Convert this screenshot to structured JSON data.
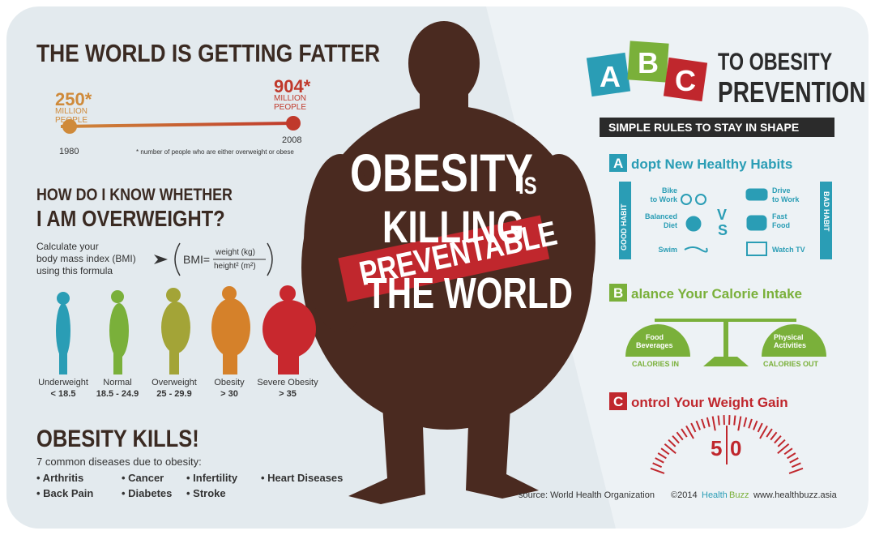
{
  "fatter": {
    "title": "THE WORLD IS GETTING FATTER",
    "points": [
      {
        "value": "250*",
        "unit": [
          "MILLION",
          "PEOPLE"
        ],
        "year": "1980"
      },
      {
        "value": "904*",
        "unit": [
          "MILLION",
          "PEOPLE"
        ],
        "year": "2008"
      }
    ],
    "note": "* number of people who are either overweight or obese"
  },
  "bmi": {
    "title": [
      "HOW DO I KNOW WHETHER",
      "I AM OVERWEIGHT?"
    ],
    "intro": [
      "Calculate your",
      "body mass index (BMI)",
      "using this formula"
    ],
    "formula": {
      "lhs": "BMI=",
      "numerator": "weight (kg)",
      "denominator": "height² (m²)"
    },
    "classes": [
      {
        "label": "Underweight",
        "range": "< 18.5"
      },
      {
        "label": "Normal",
        "range": "18.5 - 24.9"
      },
      {
        "label": "Overweight",
        "range": "25 - 29.9"
      },
      {
        "label": "Obesity",
        "range": "> 30"
      },
      {
        "label": "Severe Obesity",
        "range": "> 35"
      }
    ]
  },
  "kills": {
    "title": "OBESITY KILLS!",
    "subtitle": "7 common diseases due to obesity:",
    "diseases": [
      "• Arthritis",
      "• Back Pain",
      "• Cancer",
      "• Diabetes",
      "• Infertility",
      "• Stroke",
      "• Heart Diseases"
    ]
  },
  "center": {
    "line1": "OBESITY",
    "is": "IS",
    "line2": "KILLING",
    "line3": "THE WORLD",
    "banner": "PREVENTABLE"
  },
  "abc": {
    "letters": [
      "A",
      "B",
      "C"
    ],
    "title": [
      "TO OBESITY",
      "PREVENTION"
    ],
    "tagline": "SIMPLE RULES TO STAY IN SHAPE"
  },
  "adopt": {
    "letter": "A",
    "heading": "dopt New Healthy Habits",
    "good": "GOOD HABIT",
    "bad": "BAD HABIT",
    "vs": [
      "V",
      "S"
    ],
    "good_items": [
      [
        "Bike",
        "to Work"
      ],
      [
        "Balanced",
        "Diet"
      ],
      [
        "Swim"
      ]
    ],
    "bad_items": [
      [
        "Drive",
        "to Work"
      ],
      [
        "Fast",
        "Food"
      ],
      [
        "Watch TV"
      ]
    ]
  },
  "balance": {
    "letter": "B",
    "heading": "alance Your Calorie Intake",
    "left": [
      "Food",
      "Beverages"
    ],
    "left_caption": "CALORIES IN",
    "right": [
      "Physical",
      "Activities"
    ],
    "right_caption": "CALORIES OUT"
  },
  "control": {
    "letter": "C",
    "heading": "ontrol Your Weight Gain",
    "gauge": [
      "5",
      "0"
    ]
  },
  "footer": {
    "source": "source: World Health Organization",
    "copyright": "©2014",
    "brand": [
      "Health",
      "Buzz"
    ],
    "url": "www.healthbuzz.asia"
  }
}
